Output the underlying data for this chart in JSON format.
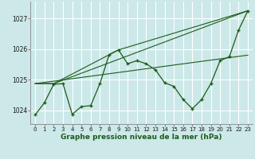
{
  "title": "Graphe pression niveau de la mer (hPa)",
  "bg_color": "#cce8e8",
  "plot_bg_color": "#cce8e8",
  "grid_color": "#ffffff",
  "line_color": "#1a5c1a",
  "xlabel_color": "#1a5c1a",
  "ylim": [
    1023.55,
    1027.55
  ],
  "yticks": [
    1024,
    1025,
    1026,
    1027
  ],
  "xlim": [
    -0.5,
    23.5
  ],
  "xticks": [
    0,
    1,
    2,
    3,
    4,
    5,
    6,
    7,
    8,
    9,
    10,
    11,
    12,
    13,
    14,
    15,
    16,
    17,
    18,
    19,
    20,
    21,
    22,
    23
  ],
  "series1_x": [
    0,
    1,
    2,
    3,
    4,
    5,
    6,
    7,
    8,
    9,
    10,
    11,
    12,
    13,
    14,
    15,
    16,
    17,
    18,
    19,
    20,
    21,
    22,
    23
  ],
  "series1_y": [
    1023.85,
    1024.25,
    1024.85,
    1024.87,
    1023.87,
    1024.12,
    1024.15,
    1024.87,
    1025.82,
    1025.97,
    1025.52,
    1025.62,
    1025.52,
    1025.32,
    1024.9,
    1024.78,
    1024.35,
    1024.05,
    1024.35,
    1024.87,
    1025.62,
    1025.75,
    1026.62,
    1027.25
  ],
  "series2_x": [
    0,
    2,
    23
  ],
  "series2_y": [
    1024.87,
    1024.87,
    1027.25
  ],
  "series3_x": [
    0,
    2,
    9,
    23
  ],
  "series3_y": [
    1024.87,
    1024.87,
    1025.97,
    1027.25
  ],
  "series4_x": [
    0,
    23
  ],
  "series4_y": [
    1024.87,
    1025.8
  ],
  "spine_color": "#888888",
  "tick_fontsize": 5.5,
  "xlabel_fontsize": 6.5
}
